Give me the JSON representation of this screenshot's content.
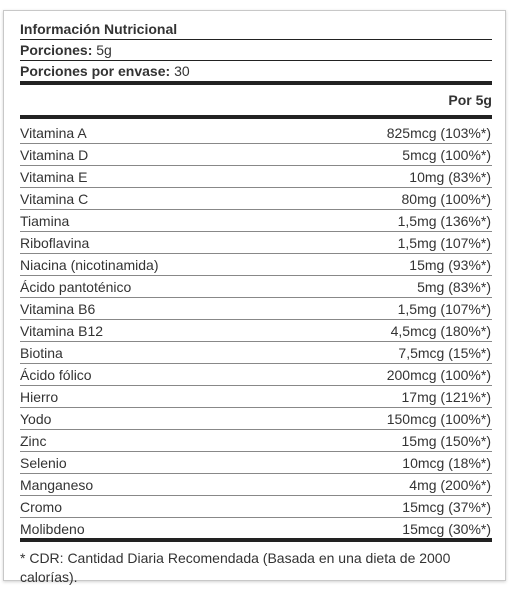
{
  "label": {
    "title": "Información Nutricional",
    "serving_label": "Porciones:",
    "serving_value": "5g",
    "servings_per_container_label": "Porciones por envase:",
    "servings_per_container_value": "30",
    "column_header": "Por 5g",
    "nutrients": [
      {
        "name": "Vitamina A",
        "amount": "825mcg (103%*)"
      },
      {
        "name": "Vitamina D",
        "amount": "5mcg (100%*)"
      },
      {
        "name": "Vitamina E",
        "amount": "10mg (83%*)"
      },
      {
        "name": "Vitamina C",
        "amount": "80mg (100%*)"
      },
      {
        "name": "Tiamina",
        "amount": "1,5mg (136%*)"
      },
      {
        "name": "Riboflavina",
        "amount": "1,5mg (107%*)"
      },
      {
        "name": "Niacina (nicotinamida)",
        "amount": "15mg (93%*)"
      },
      {
        "name": "Ácido pantoténico",
        "amount": "5mg (83%*)"
      },
      {
        "name": "Vitamina B6",
        "amount": "1,5mg (107%*)"
      },
      {
        "name": "Vitamina B12",
        "amount": "4,5mcg (180%*)"
      },
      {
        "name": "Biotina",
        "amount": "7,5mcg (15%*)"
      },
      {
        "name": "Ácido fólico",
        "amount": "200mcg (100%*)"
      },
      {
        "name": "Hierro",
        "amount": "17mg (121%*)"
      },
      {
        "name": "Yodo",
        "amount": "150mcg (100%*)"
      },
      {
        "name": "Zinc",
        "amount": "15mg (150%*)"
      },
      {
        "name": "Selenio",
        "amount": "10mcg (18%*)"
      },
      {
        "name": "Manganeso",
        "amount": "4mg (200%*)"
      },
      {
        "name": "Cromo",
        "amount": "15mcg (37%*)"
      },
      {
        "name": "Molibdeno",
        "amount": "15mcg (30%*)"
      }
    ],
    "footnote": "* CDR: Cantidad Diaria Recomendada (Basada en una dieta de 2000 calorías)."
  }
}
